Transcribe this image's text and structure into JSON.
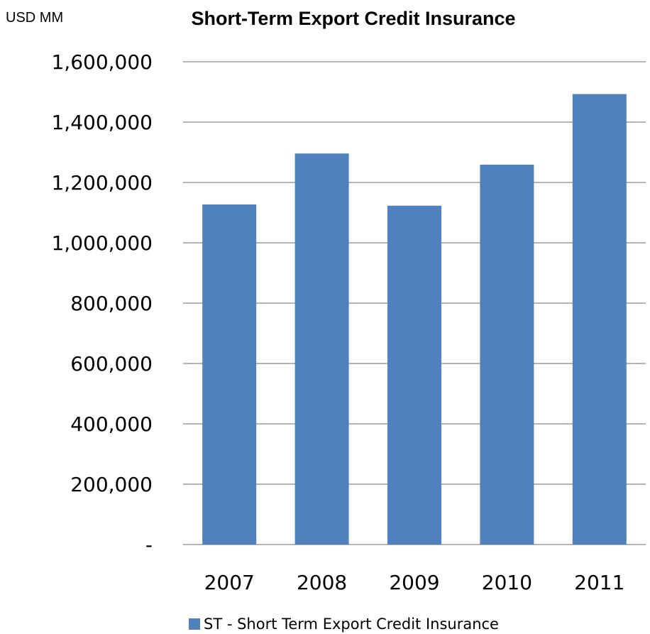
{
  "unit_label": "USD MM",
  "chart_data": {
    "type": "bar",
    "title": "Short-Term Export Credit Insurance",
    "xlabel": "",
    "ylabel": "",
    "categories": [
      "2007",
      "2008",
      "2009",
      "2010",
      "2011"
    ],
    "series": [
      {
        "name": "ST - Short Term Export Credit Insurance",
        "values": [
          1127000,
          1296000,
          1123000,
          1259000,
          1493000
        ],
        "color": "#4F81BD"
      }
    ],
    "ylim": [
      0,
      1600000
    ],
    "yticks": [
      {
        "value": 0,
        "label": "-"
      },
      {
        "value": 200000,
        "label": "200,000"
      },
      {
        "value": 400000,
        "label": "400,000"
      },
      {
        "value": 600000,
        "label": "600,000"
      },
      {
        "value": 800000,
        "label": "800,000"
      },
      {
        "value": 1000000,
        "label": "1,000,000"
      },
      {
        "value": 1200000,
        "label": "1,200,000"
      },
      {
        "value": 1400000,
        "label": "1,400,000"
      },
      {
        "value": 1600000,
        "label": "1,600,000"
      }
    ],
    "grid": true,
    "legend_position": "bottom"
  }
}
